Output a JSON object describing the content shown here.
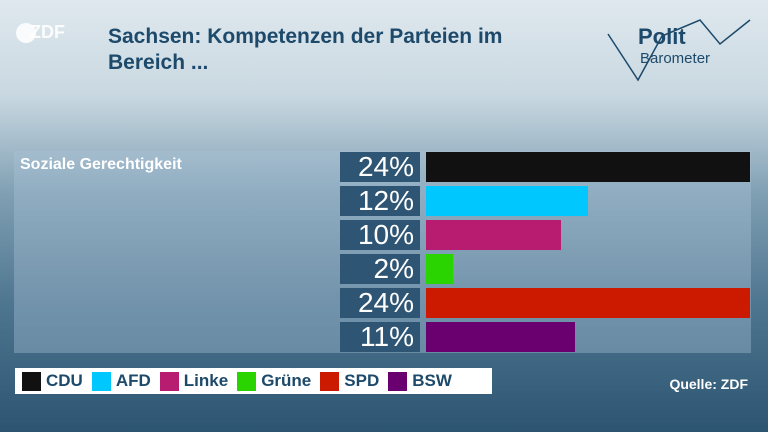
{
  "header": {
    "logo_text": "ZDF",
    "title": "Sachsen: Kompetenzen der Parteien im Bereich ...",
    "brand_line1": "Polit",
    "brand_line2": "Barometer"
  },
  "chart_data": {
    "type": "bar",
    "orientation": "horizontal",
    "title": "Sachsen: Kompetenzen der Parteien im Bereich ...",
    "category": "Soziale Gerechtigkeit",
    "categories": [
      "CDU",
      "AFD",
      "Linke",
      "Grüne",
      "SPD",
      "BSW"
    ],
    "values": [
      24,
      12,
      10,
      2,
      24,
      11
    ],
    "labels": [
      "24%",
      "12%",
      "10%",
      "2%",
      "24%",
      "11%"
    ],
    "colors": [
      "#111111",
      "#00c8ff",
      "#b81c70",
      "#2ad400",
      "#cc1a00",
      "#6a0070"
    ],
    "xlim": [
      0,
      24
    ],
    "legend_position": "bottom-left",
    "grid": false
  },
  "legend": {
    "items": [
      {
        "label": "CDU",
        "color": "#111111"
      },
      {
        "label": "AFD",
        "color": "#00c8ff"
      },
      {
        "label": "Linke",
        "color": "#b81c70"
      },
      {
        "label": "Grüne",
        "color": "#2ad400"
      },
      {
        "label": "SPD",
        "color": "#cc1a00"
      },
      {
        "label": "BSW",
        "color": "#6a0070"
      }
    ]
  },
  "footer": {
    "source": "Quelle: ZDF"
  }
}
